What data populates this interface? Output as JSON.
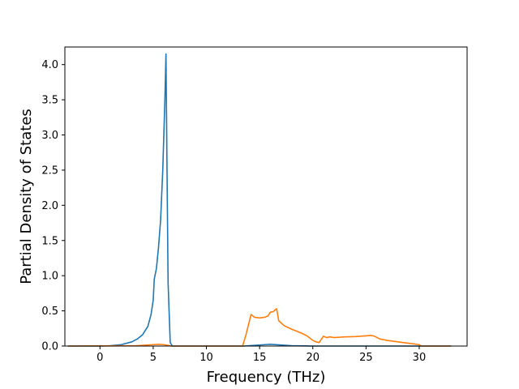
{
  "chart_data": {
    "type": "line",
    "title": "",
    "xlabel": "Frequency (THz)",
    "ylabel": "Partial Density of States",
    "xlim": [
      -3.3,
      34.5
    ],
    "ylim": [
      0,
      4.25
    ],
    "xticks": [
      0,
      5,
      10,
      15,
      20,
      25,
      30
    ],
    "xtick_labels": [
      "0",
      "5",
      "10",
      "15",
      "20",
      "25",
      "30"
    ],
    "yticks": [
      0.0,
      0.5,
      1.0,
      1.5,
      2.0,
      2.5,
      3.0,
      3.5,
      4.0
    ],
    "ytick_labels": [
      "0.0",
      "0.5",
      "1.0",
      "1.5",
      "2.0",
      "2.5",
      "3.0",
      "3.5",
      "4.0"
    ],
    "grid": false,
    "legend": "none",
    "series": [
      {
        "color": "#1f77b4",
        "points": [
          [
            -3,
            0
          ],
          [
            0,
            0
          ],
          [
            1,
            0.005
          ],
          [
            2,
            0.02
          ],
          [
            3,
            0.06
          ],
          [
            3.5,
            0.1
          ],
          [
            4,
            0.16
          ],
          [
            4.5,
            0.28
          ],
          [
            4.8,
            0.45
          ],
          [
            5,
            0.65
          ],
          [
            5.1,
            0.95
          ],
          [
            5.3,
            1.1
          ],
          [
            5.5,
            1.4
          ],
          [
            5.7,
            1.8
          ],
          [
            5.9,
            2.5
          ],
          [
            6.1,
            3.5
          ],
          [
            6.2,
            4.15
          ],
          [
            6.3,
            2.5
          ],
          [
            6.4,
            0.9
          ],
          [
            6.6,
            0.05
          ],
          [
            6.8,
            0
          ],
          [
            13.5,
            0
          ],
          [
            14.5,
            0.01
          ],
          [
            15.5,
            0.02
          ],
          [
            16,
            0.025
          ],
          [
            17,
            0.015
          ],
          [
            18,
            0.005
          ],
          [
            20,
            0
          ],
          [
            33,
            0
          ]
        ]
      },
      {
        "color": "#ff7f0e",
        "points": [
          [
            -3,
            0
          ],
          [
            3.5,
            0.005
          ],
          [
            4.5,
            0.015
          ],
          [
            5,
            0.02
          ],
          [
            5.5,
            0.025
          ],
          [
            6,
            0.02
          ],
          [
            6.4,
            0.01
          ],
          [
            6.7,
            0
          ],
          [
            13.4,
            0
          ],
          [
            13.7,
            0.15
          ],
          [
            14.2,
            0.45
          ],
          [
            14.5,
            0.41
          ],
          [
            15,
            0.4
          ],
          [
            15.5,
            0.41
          ],
          [
            15.8,
            0.43
          ],
          [
            16,
            0.48
          ],
          [
            16.3,
            0.49
          ],
          [
            16.5,
            0.52
          ],
          [
            16.6,
            0.53
          ],
          [
            16.8,
            0.36
          ],
          [
            17.3,
            0.29
          ],
          [
            18,
            0.24
          ],
          [
            19,
            0.18
          ],
          [
            19.5,
            0.14
          ],
          [
            20,
            0.08
          ],
          [
            20.3,
            0.06
          ],
          [
            20.6,
            0.05
          ],
          [
            21,
            0.14
          ],
          [
            21.3,
            0.12
          ],
          [
            21.6,
            0.13
          ],
          [
            22,
            0.12
          ],
          [
            23,
            0.13
          ],
          [
            24,
            0.135
          ],
          [
            25.5,
            0.15
          ],
          [
            25.8,
            0.14
          ],
          [
            26.3,
            0.1
          ],
          [
            27,
            0.08
          ],
          [
            28,
            0.06
          ],
          [
            29,
            0.04
          ],
          [
            30,
            0.02
          ],
          [
            30.2,
            0
          ],
          [
            33,
            0
          ]
        ]
      }
    ]
  }
}
